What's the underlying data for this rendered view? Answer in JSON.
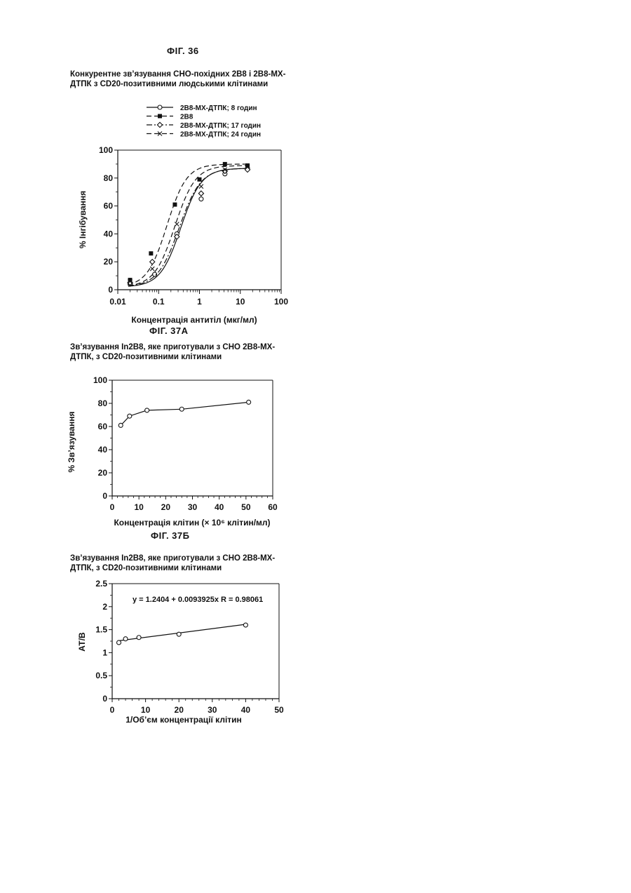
{
  "page": {
    "fig36_label": "ФІГ. 36",
    "fig36_title_1": "Конкурентне зв’язування СНО-похідних 2В8 і 2В8-МХ-",
    "fig36_title_2": "ДТПК з CD20-позитивними людськими клітинами",
    "fig37a_label": "ФІГ. 37А",
    "fig37a_title_1": "Зв’язування In2B8, яке приготували з СНО 2В8-МХ-",
    "fig37a_title_2": "ДТПК, з CD20-позитивними клітинами",
    "fig37b_label": "ФІГ. 37Б",
    "fig37b_title_1": "Зв’язування In2B8, яке приготували з СНО 2В8-МХ-",
    "fig37b_title_2": "ДТПК, з CD20-позитивними клітинами"
  },
  "chart_data": [
    {
      "id": "fig36",
      "type": "scatter",
      "x_scale": "log",
      "xlim": [
        0.01,
        100
      ],
      "ylim": [
        0,
        100
      ],
      "xticks": [
        "0.01",
        "0.1",
        "1",
        "10",
        "100"
      ],
      "yticks": [
        "0",
        "20",
        "40",
        "60",
        "80",
        "100"
      ],
      "xlabel": "Концентрація антитіл (мкг/мл)",
      "ylabel": "% Інгібування",
      "legend_position": "top",
      "series": [
        {
          "name": "2В8-МХ-ДТПК; 8 годин",
          "marker": "circle",
          "line": "solid",
          "x": [
            0.02,
            0.08,
            0.28,
            1.1,
            4.2,
            15
          ],
          "y": [
            4,
            11,
            40,
            65,
            83,
            87
          ]
        },
        {
          "name": "2В8",
          "marker": "square",
          "line": "dashed",
          "x": [
            0.02,
            0.065,
            0.25,
            1.0,
            4.2,
            15
          ],
          "y": [
            7,
            26,
            61,
            79,
            90,
            89
          ]
        },
        {
          "name": "2В8-МХ-ДТПК; 17 годин",
          "marker": "diamond",
          "line": "dash-dot",
          "x": [
            0.02,
            0.07,
            0.28,
            1.1,
            4.2,
            15
          ],
          "y": [
            5,
            20,
            38,
            69,
            85,
            86
          ]
        },
        {
          "name": "2В8-МХ-ДТПК; 24 годин",
          "marker": "x",
          "line": "dashed",
          "x": [
            0.02,
            0.07,
            0.28,
            1.1,
            4.2,
            15
          ],
          "y": [
            6,
            15,
            47,
            74,
            86,
            88
          ]
        }
      ]
    },
    {
      "id": "fig37a",
      "type": "line",
      "xlim": [
        0,
        60
      ],
      "ylim": [
        0,
        100
      ],
      "xticks": [
        "0",
        "10",
        "20",
        "30",
        "40",
        "50",
        "60"
      ],
      "yticks": [
        "0",
        "20",
        "40",
        "60",
        "80",
        "100"
      ],
      "xlabel": "Концентрація клітин (× 10⁶ клітин/мл)",
      "ylabel": "% Зв’язування",
      "series": [
        {
          "x": [
            3.2,
            6.5,
            13,
            26,
            51
          ],
          "y": [
            61,
            69,
            74,
            75,
            81
          ]
        }
      ]
    },
    {
      "id": "fig37b",
      "type": "scatter",
      "xlim": [
        0,
        50
      ],
      "ylim": [
        0,
        2.5
      ],
      "xticks": [
        "0",
        "10",
        "20",
        "30",
        "40",
        "50"
      ],
      "yticks": [
        "0",
        "0.5",
        "1",
        "1.5",
        "2",
        "2.5"
      ],
      "xlabel": "1/Об’єм концентрації клітин",
      "ylabel": "АТ/В",
      "annotation": "y = 1.2404 + 0.0093925x   R = 0.98061",
      "fit": {
        "intercept": 1.2404,
        "slope": 0.0093925
      },
      "series": [
        {
          "x": [
            2,
            4,
            8,
            20,
            40
          ],
          "y": [
            1.22,
            1.3,
            1.33,
            1.4,
            1.6
          ]
        }
      ]
    }
  ]
}
